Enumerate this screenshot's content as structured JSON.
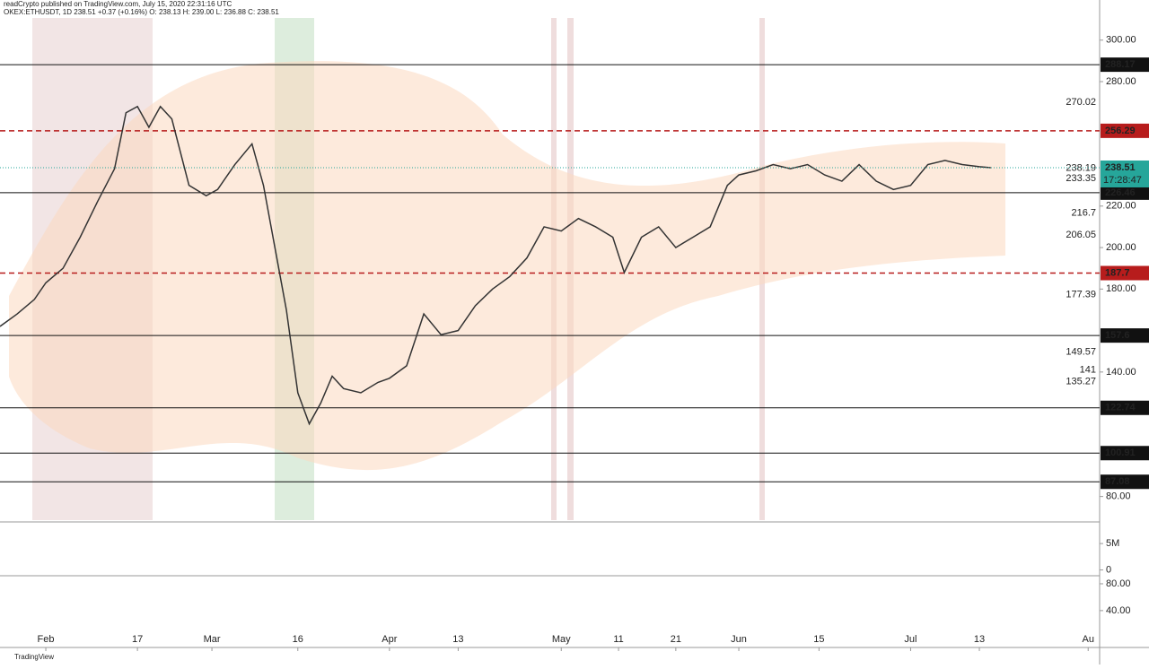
{
  "header": {
    "publisher": "readCrypto published on TradingView.com, July 15, 2020 22:31:16 UTC",
    "symbol_line": "OKEX:ETHUSDT, 1D 238.51 +0.37 (+0.16%) O: 238.13 H: 239.00 L: 236.88 C: 238.51"
  },
  "footer": {
    "brand": "TradingView"
  },
  "chart_data": {
    "type": "line",
    "color": "#333333",
    "x": [
      -8,
      -5,
      -2,
      0,
      3,
      6,
      9,
      12,
      14,
      16,
      18,
      20,
      22,
      25,
      28,
      30,
      33,
      36,
      38,
      40,
      42,
      44,
      46,
      48,
      50,
      52,
      55,
      58,
      60,
      63,
      66,
      69,
      72,
      75,
      78,
      81,
      84,
      87,
      90,
      93,
      96,
      99,
      101,
      104,
      107,
      110,
      113,
      116,
      119,
      121,
      124,
      127,
      130,
      133,
      136,
      139,
      142,
      145,
      148,
      151,
      154,
      157,
      160,
      163,
      165
    ],
    "values": [
      162,
      168,
      175,
      183,
      190,
      205,
      222,
      238,
      265,
      268,
      258,
      268,
      262,
      230,
      225,
      228,
      240,
      250,
      230,
      200,
      170,
      130,
      115,
      125,
      138,
      132,
      130,
      135,
      137,
      143,
      168,
      158,
      160,
      172,
      180,
      186,
      195,
      210,
      208,
      214,
      210,
      205,
      188,
      205,
      210,
      200,
      205,
      210,
      230,
      235,
      237,
      240,
      238,
      240,
      235,
      232,
      240,
      232,
      228,
      230,
      240,
      242,
      240,
      239,
      238.51
    ],
    "xlim": [
      -8,
      184
    ],
    "xticks": [
      {
        "value": 0,
        "label": "Feb"
      },
      {
        "value": 16,
        "label": "17"
      },
      {
        "value": 29,
        "label": "Mar"
      },
      {
        "value": 44,
        "label": "16"
      },
      {
        "value": 60,
        "label": "Apr"
      },
      {
        "value": 72,
        "label": "13"
      },
      {
        "value": 90,
        "label": "May"
      },
      {
        "value": 100,
        "label": "11"
      },
      {
        "value": 110,
        "label": "21"
      },
      {
        "value": 121,
        "label": "Jun"
      },
      {
        "value": 135,
        "label": "15"
      },
      {
        "value": 151,
        "label": "Jul"
      },
      {
        "value": 163,
        "label": "13"
      },
      {
        "value": 182,
        "label": "Au"
      }
    ],
    "ylim": [
      68.6,
      310.7
    ],
    "yticks": [
      {
        "value": 300,
        "label": "300.00"
      },
      {
        "value": 280,
        "label": "280.00"
      },
      {
        "value": 220,
        "label": "220.00"
      },
      {
        "value": 200,
        "label": "200.00"
      },
      {
        "value": 180,
        "label": "180.00"
      },
      {
        "value": 140,
        "label": "140.00"
      },
      {
        "value": 80,
        "label": "80.00"
      }
    ],
    "levels": [
      {
        "value": 288.17,
        "color": "#111111",
        "style": "solid"
      },
      {
        "value": 256.29,
        "color": "#b71c1c",
        "style": "dashed"
      },
      {
        "value": 226.46,
        "color": "#111111",
        "style": "solid"
      },
      {
        "value": 187.7,
        "color": "#b71c1c",
        "style": "dashed"
      },
      {
        "value": 157.6,
        "color": "#111111",
        "style": "solid"
      },
      {
        "value": 122.74,
        "color": "#111111",
        "style": "solid"
      },
      {
        "value": 100.91,
        "color": "#111111",
        "style": "solid"
      },
      {
        "value": 87.08,
        "color": "#111111",
        "style": "solid"
      }
    ],
    "price_labels": [
      270.02,
      238.19,
      233.35,
      216.7,
      206.05,
      177.39,
      149.57,
      141,
      135.27
    ],
    "last_price": 238.51,
    "last_color": "#26a69a",
    "countdown": "17:28:47",
    "volume_axis": {
      "ylim": [
        -1100000,
        9100000
      ],
      "yticks": [
        {
          "value": 5000000,
          "label": "5M"
        },
        0
      ]
    },
    "rsi_axis": {
      "ylim": [
        -15,
        92
      ],
      "yticks": [
        {
          "value": 80,
          "label": "80.00"
        },
        {
          "value": 40,
          "label": "40.00"
        }
      ]
    }
  }
}
